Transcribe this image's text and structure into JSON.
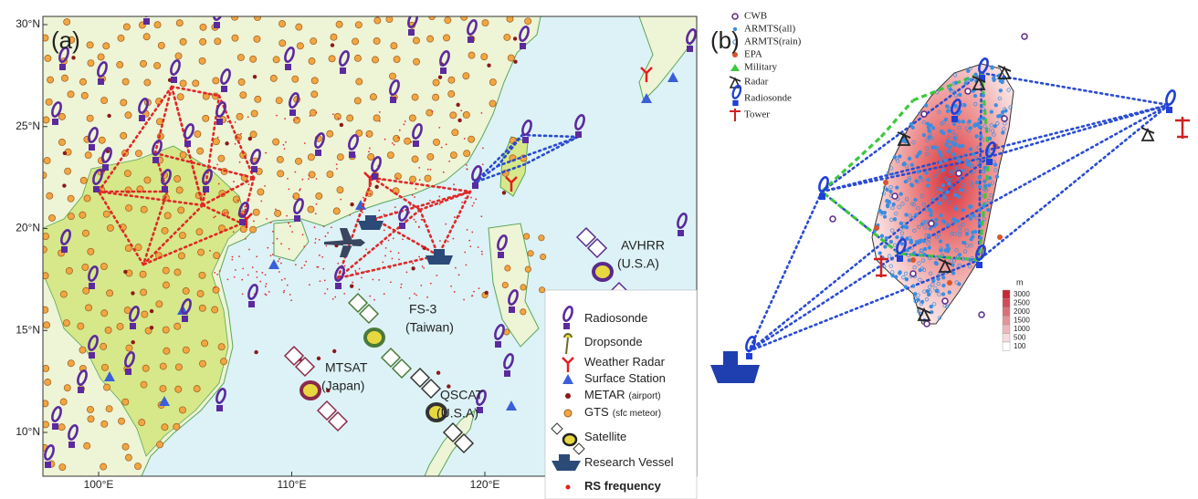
{
  "panel_a": {
    "label": "(a)",
    "lat_ticks": [
      {
        "value": 30,
        "label": "30°N"
      },
      {
        "value": 25,
        "label": "25°N"
      },
      {
        "value": 20,
        "label": "20°N"
      },
      {
        "value": 15,
        "label": "15°N"
      },
      {
        "value": 10,
        "label": "10°N"
      }
    ],
    "lon_ticks": [
      {
        "value": 100,
        "label": "100°E"
      },
      {
        "value": 110,
        "label": "110°E"
      },
      {
        "value": 120,
        "label": "120°E"
      }
    ],
    "satellites": [
      {
        "name": "AVHRR",
        "country": "(U.S.A)"
      },
      {
        "name": "FS-3",
        "country": "(Taiwan)"
      },
      {
        "name": "MTSAT",
        "country": "(Japan)"
      },
      {
        "name": "QSCAT",
        "country": "(U.S.A)"
      }
    ],
    "legend": [
      {
        "label": "Radiosonde"
      },
      {
        "label": "Dropsonde"
      },
      {
        "label": "Weather Radar"
      },
      {
        "label": "Surface Station"
      },
      {
        "label": "METAR",
        "note": "(airport)"
      },
      {
        "label": "GTS",
        "note": "(sfc meteor)"
      },
      {
        "label": "Satellite"
      },
      {
        "label": "Research Vessel"
      },
      {
        "label": "RS frequency"
      }
    ]
  },
  "panel_b": {
    "label": "(b)",
    "legend": [
      {
        "label": "CWB"
      },
      {
        "label": "ARMTS(all)"
      },
      {
        "label": "ARMTS(rain)"
      },
      {
        "label": "EPA"
      },
      {
        "label": "Military"
      },
      {
        "label": "Radar"
      },
      {
        "label": "Radiosonde"
      },
      {
        "label": "Tower"
      }
    ],
    "colorbar": {
      "unit": "m",
      "ticks": [
        3000,
        2500,
        2000,
        1500,
        1000,
        500,
        100
      ]
    }
  }
}
